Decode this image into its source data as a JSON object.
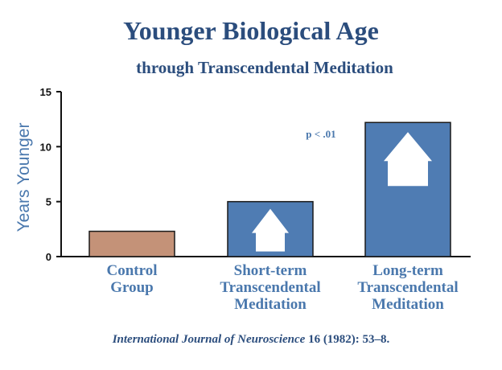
{
  "chart_data": {
    "type": "bar",
    "title": "Younger Biological Age",
    "subtitle": "through Transcendental Meditation",
    "ylabel": "Years Younger",
    "ylim": [
      0,
      15
    ],
    "yticks": [
      "0",
      "5",
      "10",
      "15"
    ],
    "categories": [
      [
        "Control",
        "Group"
      ],
      [
        "Short-term",
        "Transcendental",
        "Meditation"
      ],
      [
        "Long-term",
        "Transcendental",
        "Meditation"
      ]
    ],
    "values": [
      2.3,
      5.0,
      12.2
    ],
    "bar_colors": [
      "#c49278",
      "#4f7cb3",
      "#4f7cb3"
    ],
    "arrows": [
      false,
      true,
      true
    ],
    "annotation": "p < .01",
    "grid": false
  },
  "citation": {
    "journal": "International Journal of Neuroscience",
    "details": " 16 (1982): 53–8."
  },
  "colors": {
    "text": "#2b4d7d",
    "label": "#4a78ad",
    "axis": "#111111"
  }
}
